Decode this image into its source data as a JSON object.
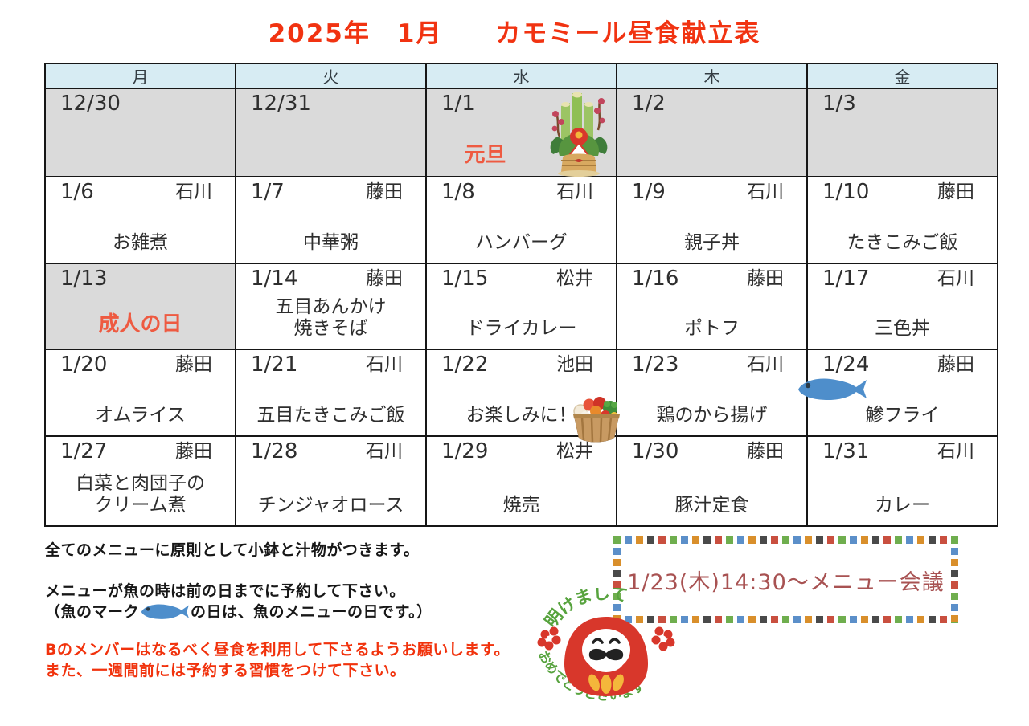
{
  "page": {
    "title": "2025年　1月　　カモミール昼食献立表"
  },
  "calendar": {
    "day_headers": [
      "月",
      "火",
      "水",
      "木",
      "金"
    ],
    "weeks": [
      {
        "cells": [
          {
            "date": "12/30",
            "shaded": true
          },
          {
            "date": "12/31",
            "shaded": true
          },
          {
            "date": "1/1",
            "shaded": true,
            "holiday": "元旦",
            "image": "kadomatsu-icon"
          },
          {
            "date": "1/2",
            "shaded": true
          },
          {
            "date": "1/3",
            "shaded": true
          }
        ]
      },
      {
        "cells": [
          {
            "date": "1/6",
            "cook": "石川",
            "menu": [
              "お雑煮"
            ]
          },
          {
            "date": "1/7",
            "cook": "藤田",
            "menu": [
              "中華粥"
            ]
          },
          {
            "date": "1/8",
            "cook": "石川",
            "menu": [
              "ハンバーグ"
            ]
          },
          {
            "date": "1/9",
            "cook": "石川",
            "menu": [
              "親子丼"
            ]
          },
          {
            "date": "1/10",
            "cook": "藤田",
            "menu": [
              "たきこみご飯"
            ]
          }
        ]
      },
      {
        "cells": [
          {
            "date": "1/13",
            "shaded": true,
            "holiday": "成人の日"
          },
          {
            "date": "1/14",
            "cook": "藤田",
            "menu": [
              "五目あんかけ",
              "焼きそば"
            ]
          },
          {
            "date": "1/15",
            "cook": "松井",
            "menu": [
              "ドライカレー"
            ]
          },
          {
            "date": "1/16",
            "cook": "藤田",
            "menu": [
              "ポトフ"
            ]
          },
          {
            "date": "1/17",
            "cook": "石川",
            "menu": [
              "三色丼"
            ]
          }
        ]
      },
      {
        "cells": [
          {
            "date": "1/20",
            "cook": "藤田",
            "menu": [
              "オムライス"
            ]
          },
          {
            "date": "1/21",
            "cook": "石川",
            "menu": [
              "五目たきこみご飯"
            ]
          },
          {
            "date": "1/22",
            "cook": "池田",
            "menu": [
              "お楽しみに！"
            ],
            "image": "food-basket-icon"
          },
          {
            "date": "1/23",
            "cook": "石川",
            "menu": [
              "鶏のから揚げ"
            ]
          },
          {
            "date": "1/24",
            "cook": "藤田",
            "menu": [
              "鯵フライ"
            ],
            "image": "fish-icon"
          }
        ]
      },
      {
        "cells": [
          {
            "date": "1/27",
            "cook": "藤田",
            "menu": [
              "白菜と肉団子の",
              "クリーム煮"
            ]
          },
          {
            "date": "1/28",
            "cook": "石川",
            "menu": [
              "チンジャオロース"
            ]
          },
          {
            "date": "1/29",
            "cook": "松井",
            "menu": [
              "焼売"
            ]
          },
          {
            "date": "1/30",
            "cook": "藤田",
            "menu": [
              "豚汁定食"
            ]
          },
          {
            "date": "1/31",
            "cook": "石川",
            "menu": [
              "カレー"
            ]
          }
        ]
      }
    ]
  },
  "notes": {
    "note1": "全てのメニューに原則として小鉢と汁物がつきます。",
    "note2_line1": "メニューが魚の時は前の日までに予約して下さい。",
    "note2_line2_before_fish": "（魚のマーク",
    "note2_line2_after_fish": "の日は、魚のメニューの日です。）",
    "warning_line1": "Bのメンバーはなるべく昼食を利用して下さるようお願いします。",
    "warning_line2": "また、一週間前には予約する習慣をつけて下さい。"
  },
  "meeting_box": {
    "text": "1/23(木)14:30～メニュー会議"
  },
  "newyear_greeting": {
    "top": "明けまして",
    "bottom": "おめでとうございます"
  },
  "colors": {
    "title_red": "#f13311",
    "holiday_red": "#ee5a41",
    "warning_red": "#f1320c",
    "meeting_text": "#a85252",
    "header_blue": "#d7ecf3",
    "shaded_gray": "#dadada",
    "fish_blue": "#4e8ecb",
    "greeting_green": "#57a33e"
  }
}
